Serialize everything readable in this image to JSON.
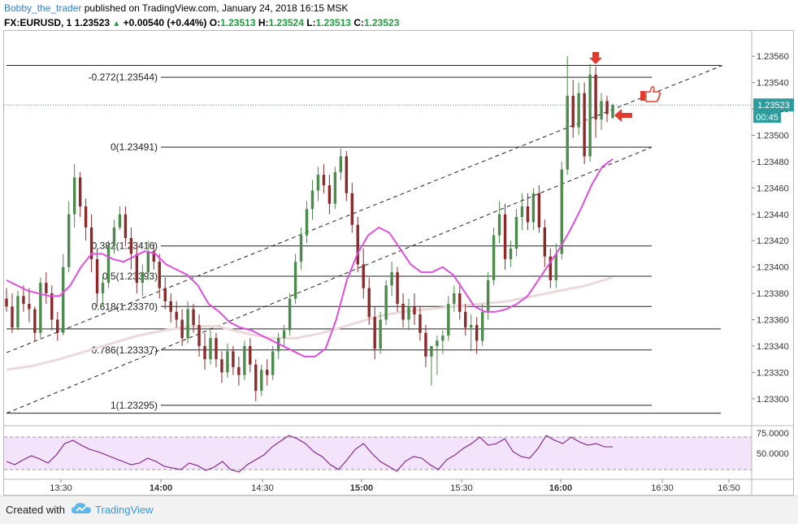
{
  "header": {
    "user": "Bobby_the_trader",
    "published": "published on TradingView.com, January 24, 2018 16:15 MSK",
    "symbol": "FX:EURUSD, 1",
    "price": "1.23523",
    "change_arrow": "▲",
    "change": "+0.00540 (+0.44%)",
    "o_label": "O:",
    "o_val": "1.23513",
    "h_label": "H:",
    "h_val": "1.23524",
    "l_label": "L:",
    "l_val": "1.23513",
    "c_label": "C:",
    "c_val": "1.23523"
  },
  "footer": {
    "created_with": "Created with",
    "brand": "TradingView",
    "logo_icon": "tradingview-cloud-icon"
  },
  "colors": {
    "up": "#4d8a4d",
    "down": "#8b2a2a",
    "ma_fast": "#e04fe0",
    "ma_slow": "#ecd9d9",
    "rsi": "#7e1f86",
    "rsi_band": "#f3e4fb",
    "annotation_red": "#e33a2e",
    "price_badge": "#2e9c9c"
  },
  "chart_data": {
    "type": "candlestick",
    "price_axis": {
      "ticks": [
        "1.23560",
        "1.23540",
        "1.23520",
        "1.23500",
        "1.23480",
        "1.23460",
        "1.23440",
        "1.23420",
        "1.23400",
        "1.23380",
        "1.23360",
        "1.23340",
        "1.23320",
        "1.23300"
      ],
      "range": [
        1.23282,
        1.23578
      ]
    },
    "time_axis": {
      "ticks": [
        "13:30",
        "14:00",
        "14:30",
        "15:00",
        "15:30",
        "16:00",
        "16:30",
        "16:50"
      ]
    },
    "last_price": "1.23523",
    "countdown": "00:45",
    "fibonacci": [
      {
        "label": "-0.272(1.23544)",
        "value": 1.23544
      },
      {
        "label": "0(1.23491)",
        "value": 1.23491
      },
      {
        "label": "0.382(1.23416)",
        "value": 1.23416
      },
      {
        "label": "0.5(1.23393)",
        "value": 1.23393
      },
      {
        "label": "0.618(1.23370)",
        "value": 1.2337
      },
      {
        "label": "0.786(1.23337)",
        "value": 1.23337
      },
      {
        "label": "1(1.23295)",
        "value": 1.23295
      }
    ],
    "horizontal_levels": [
      1.23553,
      1.23353,
      1.23289
    ],
    "channel": {
      "upper": [
        [
          1.23335,
          1.23553
        ]
      ],
      "lower": [
        [
          1.23289,
          1.23491
        ]
      ]
    },
    "rsi": {
      "ticks": [
        "75.0000",
        "50.0000"
      ],
      "levels": [
        70,
        30
      ],
      "range": [
        20,
        80
      ]
    },
    "ohlc": [
      [
        1.23376,
        1.23384,
        1.23366,
        1.2337
      ],
      [
        1.2337,
        1.2338,
        1.2335,
        1.23354
      ],
      [
        1.23354,
        1.23382,
        1.23352,
        1.23378
      ],
      [
        1.23378,
        1.23386,
        1.23366,
        1.23372
      ],
      [
        1.23372,
        1.23384,
        1.23358,
        1.23368
      ],
      [
        1.23368,
        1.2337,
        1.23344,
        1.2335
      ],
      [
        1.2335,
        1.23392,
        1.23346,
        1.23388
      ],
      [
        1.23388,
        1.23396,
        1.23372,
        1.2338
      ],
      [
        1.2338,
        1.23386,
        1.23352,
        1.2336
      ],
      [
        1.2336,
        1.23366,
        1.23344,
        1.2335
      ],
      [
        1.2335,
        1.2341,
        1.23348,
        1.234
      ],
      [
        1.234,
        1.2345,
        1.23396,
        1.2344
      ],
      [
        1.2344,
        1.23478,
        1.2343,
        1.23468
      ],
      [
        1.23468,
        1.23472,
        1.23438,
        1.23446
      ],
      [
        1.23446,
        1.23452,
        1.2342,
        1.2343
      ],
      [
        1.2343,
        1.2344,
        1.23396,
        1.23406
      ],
      [
        1.23406,
        1.23414,
        1.2337,
        1.2338
      ],
      [
        1.2338,
        1.23394,
        1.2337,
        1.23388
      ],
      [
        1.23388,
        1.2342,
        1.23384,
        1.23416
      ],
      [
        1.23416,
        1.23436,
        1.2341,
        1.2343
      ],
      [
        1.2343,
        1.23446,
        1.23428,
        1.2344
      ],
      [
        1.2344,
        1.23446,
        1.23416,
        1.23422
      ],
      [
        1.23422,
        1.2343,
        1.23398,
        1.2341
      ],
      [
        1.2341,
        1.23418,
        1.2338,
        1.23388
      ],
      [
        1.23388,
        1.23402,
        1.23378,
        1.23396
      ],
      [
        1.23396,
        1.2342,
        1.2339,
        1.23412
      ],
      [
        1.23412,
        1.23418,
        1.23398,
        1.23404
      ],
      [
        1.23404,
        1.2341,
        1.23376,
        1.23384
      ],
      [
        1.23384,
        1.23392,
        1.23368,
        1.23374
      ],
      [
        1.23374,
        1.2338,
        1.23358,
        1.23366
      ],
      [
        1.23366,
        1.23374,
        1.23354,
        1.2336
      ],
      [
        1.2336,
        1.23368,
        1.2334,
        1.23346
      ],
      [
        1.23346,
        1.23374,
        1.23342,
        1.23368
      ],
      [
        1.23368,
        1.23372,
        1.2335,
        1.23356
      ],
      [
        1.23356,
        1.23364,
        1.23332,
        1.2334
      ],
      [
        1.2334,
        1.2335,
        1.23322,
        1.2333
      ],
      [
        1.2333,
        1.23352,
        1.23326,
        1.23346
      ],
      [
        1.23346,
        1.2335,
        1.23324,
        1.2333
      ],
      [
        1.2333,
        1.23336,
        1.23312,
        1.2332
      ],
      [
        1.2332,
        1.23342,
        1.23316,
        1.23336
      ],
      [
        1.23336,
        1.2334,
        1.23318,
        1.23324
      ],
      [
        1.23324,
        1.23332,
        1.2331,
        1.23318
      ],
      [
        1.23318,
        1.23344,
        1.23314,
        1.2334
      ],
      [
        1.2334,
        1.23346,
        1.2332,
        1.23326
      ],
      [
        1.23326,
        1.2333,
        1.23298,
        1.23306
      ],
      [
        1.23306,
        1.23326,
        1.23302,
        1.23322
      ],
      [
        1.23322,
        1.2333,
        1.2331,
        1.23318
      ],
      [
        1.23318,
        1.2334,
        1.23314,
        1.23336
      ],
      [
        1.23336,
        1.2335,
        1.2333,
        1.23346
      ],
      [
        1.23346,
        1.23356,
        1.2334,
        1.23352
      ],
      [
        1.23352,
        1.2338,
        1.23348,
        1.23376
      ],
      [
        1.23376,
        1.2341,
        1.23372,
        1.23404
      ],
      [
        1.23404,
        1.2343,
        1.23398,
        1.23424
      ],
      [
        1.23424,
        1.2345,
        1.23418,
        1.23444
      ],
      [
        1.23444,
        1.23466,
        1.23436,
        1.23458
      ],
      [
        1.23458,
        1.23476,
        1.2345,
        1.2347
      ],
      [
        1.2347,
        1.23478,
        1.23456,
        1.23462
      ],
      [
        1.23462,
        1.2347,
        1.2344,
        1.23448
      ],
      [
        1.23448,
        1.23476,
        1.23444,
        1.23472
      ],
      [
        1.23472,
        1.2349,
        1.23466,
        1.23484
      ],
      [
        1.23484,
        1.23488,
        1.2345,
        1.23456
      ],
      [
        1.23456,
        1.23464,
        1.23426,
        1.23432
      ],
      [
        1.23432,
        1.23438,
        1.23396,
        1.23402
      ],
      [
        1.23402,
        1.23414,
        1.23376,
        1.23384
      ],
      [
        1.23384,
        1.23392,
        1.23356,
        1.23362
      ],
      [
        1.23362,
        1.2337,
        1.2333,
        1.23338
      ],
      [
        1.23338,
        1.23366,
        1.23334,
        1.2336
      ],
      [
        1.2336,
        1.2339,
        1.23356,
        1.23386
      ],
      [
        1.23386,
        1.23404,
        1.23378,
        1.23396
      ],
      [
        1.23396,
        1.234,
        1.23366,
        1.23372
      ],
      [
        1.23372,
        1.2338,
        1.23354,
        1.2336
      ],
      [
        1.2336,
        1.23376,
        1.23352,
        1.2337
      ],
      [
        1.2337,
        1.2338,
        1.23356,
        1.23364
      ],
      [
        1.23364,
        1.2337,
        1.23344,
        1.2335
      ],
      [
        1.2335,
        1.23356,
        1.23324,
        1.23332
      ],
      [
        1.23332,
        1.2334,
        1.2331,
        1.2334
      ],
      [
        1.2334,
        1.23348,
        1.23318,
        1.23344
      ],
      [
        1.23344,
        1.23352,
        1.23334,
        1.23348
      ],
      [
        1.23348,
        1.23378,
        1.23344,
        1.23372
      ],
      [
        1.23372,
        1.23386,
        1.23366,
        1.2338
      ],
      [
        1.2338,
        1.23388,
        1.2336,
        1.23366
      ],
      [
        1.23366,
        1.23372,
        1.23348,
        1.23354
      ],
      [
        1.23354,
        1.23364,
        1.23336,
        1.23356
      ],
      [
        1.23356,
        1.23362,
        1.23334,
        1.23344
      ],
      [
        1.23344,
        1.23372,
        1.2334,
        1.23366
      ],
      [
        1.23366,
        1.23396,
        1.2336,
        1.2339
      ],
      [
        1.2339,
        1.2343,
        1.23386,
        1.23424
      ],
      [
        1.23424,
        1.2345,
        1.23418,
        1.2344
      ],
      [
        1.2344,
        1.23448,
        1.23398,
        1.23406
      ],
      [
        1.23406,
        1.2342,
        1.234,
        1.23414
      ],
      [
        1.23414,
        1.23444,
        1.23408,
        1.23438
      ],
      [
        1.23438,
        1.23456,
        1.23428,
        1.23446
      ],
      [
        1.23446,
        1.23456,
        1.23428,
        1.23434
      ],
      [
        1.23434,
        1.2346,
        1.23428,
        1.23456
      ],
      [
        1.23456,
        1.23462,
        1.23426,
        1.2343
      ],
      [
        1.2343,
        1.23436,
        1.234,
        1.23408
      ],
      [
        1.23408,
        1.23414,
        1.23384,
        1.2339
      ],
      [
        1.2339,
        1.23418,
        1.23384,
        1.2341
      ],
      [
        1.2341,
        1.2348,
        1.23406,
        1.23474
      ],
      [
        1.23474,
        1.2356,
        1.2347,
        1.2353
      ],
      [
        1.2353,
        1.23542,
        1.23498,
        1.23506
      ],
      [
        1.23506,
        1.2354,
        1.235,
        1.23532
      ],
      [
        1.23532,
        1.2354,
        1.23478,
        1.23484
      ],
      [
        1.23484,
        1.23554,
        1.2348,
        1.23546
      ],
      [
        1.23546,
        1.23552,
        1.23498,
        1.23512
      ],
      [
        1.23512,
        1.23532,
        1.23504,
        1.23526
      ],
      [
        1.23526,
        1.2353,
        1.2351,
        1.23516
      ],
      [
        1.23513,
        1.23524,
        1.23513,
        1.23523
      ]
    ],
    "ma_fast": [
      1.2339,
      1.23386,
      1.23382,
      1.2338,
      1.23378,
      1.23378,
      1.23386,
      1.234,
      1.2341,
      1.2341,
      1.23406,
      1.23404,
      1.23408,
      1.23412,
      1.2341,
      1.23402,
      1.23398,
      1.23394,
      1.23386,
      1.23372,
      1.23366,
      1.23358,
      1.23354,
      1.23352,
      1.23348,
      1.23344,
      1.2334,
      1.23336,
      1.23332,
      1.23332,
      1.23338,
      1.2336,
      1.2339,
      1.2341,
      1.23424,
      1.2343,
      1.23426,
      1.23414,
      1.23402,
      1.23396,
      1.23396,
      1.234,
      1.23394,
      1.23382,
      1.2337,
      1.23366,
      1.23366,
      1.23368,
      1.23372,
      1.23378,
      1.2339,
      1.23402,
      1.23414,
      1.23428,
      1.23444,
      1.23462,
      1.23476,
      1.23482
    ],
    "ma_slow": [
      1.23322,
      1.23325,
      1.2333,
      1.23336,
      1.23342,
      1.23348,
      1.23352,
      1.23355,
      1.23355,
      1.2335,
      1.23346,
      1.23346,
      1.2335,
      1.23356,
      1.23362,
      1.23366,
      1.23368,
      1.2337,
      1.23372,
      1.23374,
      1.23378,
      1.23382,
      1.23386,
      1.23392
    ],
    "rsi_values": [
      40,
      36,
      42,
      47,
      43,
      38,
      48,
      62,
      66,
      60,
      55,
      52,
      48,
      44,
      40,
      36,
      38,
      44,
      40,
      34,
      32,
      30,
      38,
      35,
      29,
      33,
      40,
      30,
      27,
      36,
      42,
      48,
      58,
      65,
      72,
      68,
      62,
      52,
      46,
      36,
      30,
      42,
      55,
      62,
      50,
      40,
      34,
      28,
      40,
      46,
      44,
      36,
      30,
      42,
      48,
      56,
      62,
      70,
      60,
      62,
      68,
      52,
      46,
      44,
      56,
      72,
      66,
      62,
      70,
      64,
      60,
      62,
      58,
      58
    ]
  }
}
